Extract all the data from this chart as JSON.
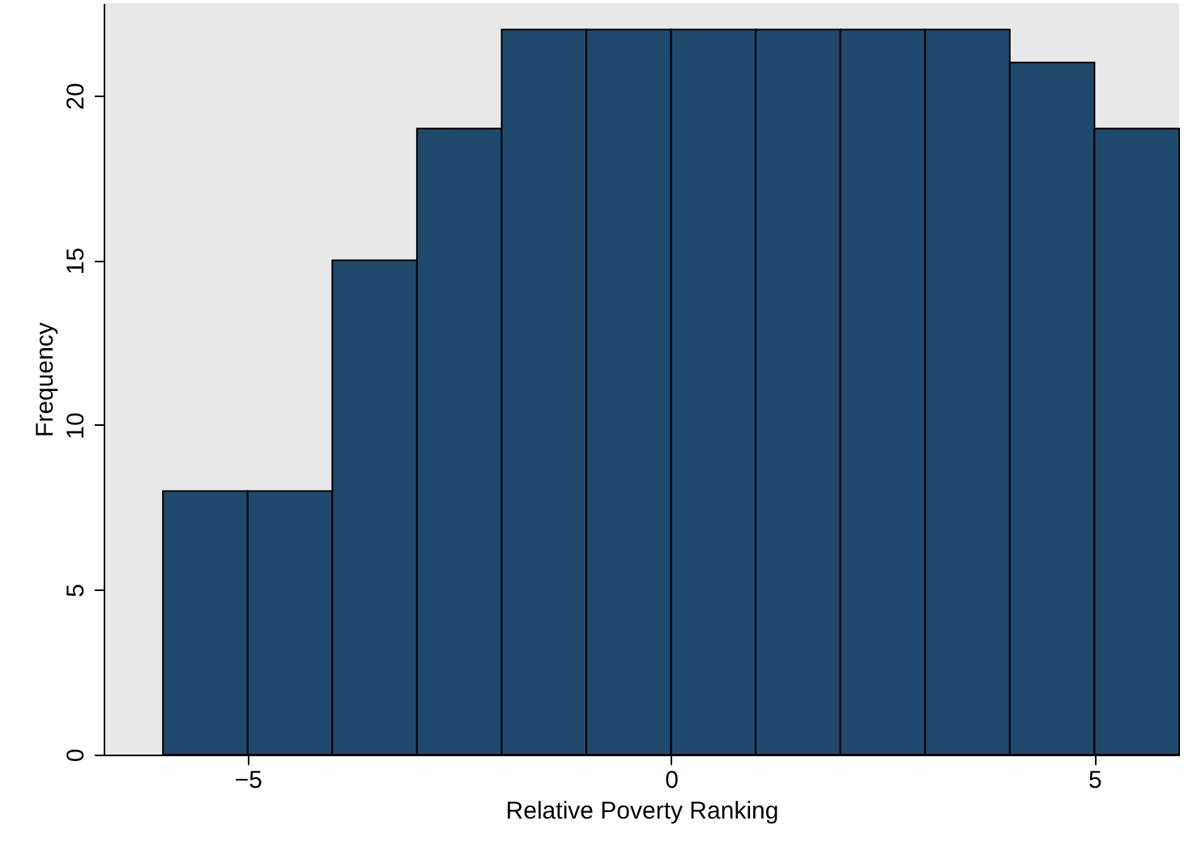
{
  "chart_data": {
    "type": "histogram",
    "xlabel": "Relative Poverty Ranking",
    "ylabel": "Frequency",
    "bins": [
      -6,
      -5,
      -4,
      -3,
      -2,
      -1,
      0,
      1,
      2,
      3,
      4,
      5,
      6
    ],
    "values": [
      8,
      8,
      15,
      19,
      22,
      22,
      22,
      22,
      22,
      22,
      21,
      19
    ],
    "color": "#1f4a6e",
    "xlim": [
      -6.7,
      6
    ],
    "ylim": [
      0,
      22.8
    ],
    "xticks": [
      -5,
      0,
      5
    ],
    "yticks": [
      0,
      5,
      10,
      15,
      20
    ]
  }
}
